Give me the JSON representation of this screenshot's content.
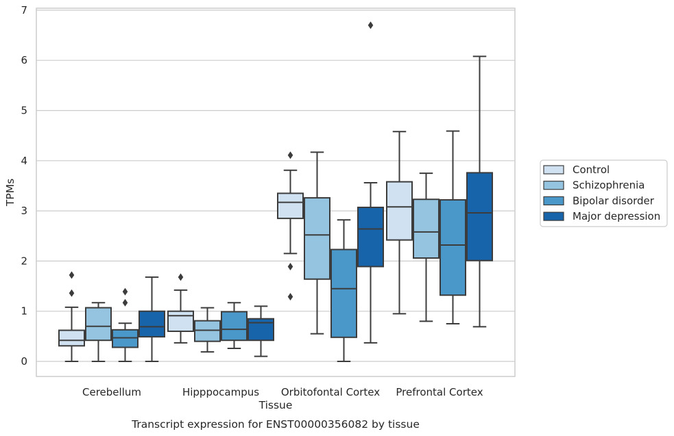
{
  "chart_data": {
    "type": "box",
    "xlabel": "Tissue",
    "ylabel": "TPMs",
    "caption": "Transcript expression for ENST00000356082 by tissue",
    "ylim": [
      -0.3,
      7.05
    ],
    "yticks": [
      0,
      1,
      2,
      3,
      4,
      5,
      6,
      7
    ],
    "grid": "horizontal",
    "legend_position": "right",
    "categories": [
      "Cerebellum",
      "Hipppocampus",
      "Orbitofontal Cortex",
      "Prefrontal Cortex"
    ],
    "series": [
      {
        "name": "Control",
        "color": "#d0e1f2",
        "boxes": [
          {
            "whislo": 0.0,
            "q1": 0.31,
            "med": 0.42,
            "q3": 0.62,
            "whishi": 1.08,
            "fliers": [
              1.72,
              1.36
            ]
          },
          {
            "whislo": 0.37,
            "q1": 0.6,
            "med": 0.91,
            "q3": 1.0,
            "whishi": 1.42,
            "fliers": [
              1.68
            ]
          },
          {
            "whislo": 2.15,
            "q1": 2.85,
            "med": 3.17,
            "q3": 3.35,
            "whishi": 3.81,
            "fliers": [
              4.11,
              1.89,
              1.29
            ]
          },
          {
            "whislo": 0.95,
            "q1": 2.42,
            "med": 3.08,
            "q3": 3.58,
            "whishi": 4.58,
            "fliers": []
          }
        ]
      },
      {
        "name": "Schizophrenia",
        "color": "#94c4df",
        "boxes": [
          {
            "whislo": 0.0,
            "q1": 0.42,
            "med": 0.7,
            "q3": 1.07,
            "whishi": 1.17,
            "fliers": []
          },
          {
            "whislo": 0.19,
            "q1": 0.4,
            "med": 0.62,
            "q3": 0.81,
            "whishi": 1.07,
            "fliers": []
          },
          {
            "whislo": 0.55,
            "q1": 1.64,
            "med": 2.52,
            "q3": 3.26,
            "whishi": 4.17,
            "fliers": []
          },
          {
            "whislo": 0.8,
            "q1": 2.06,
            "med": 2.58,
            "q3": 3.23,
            "whishi": 3.75,
            "fliers": []
          }
        ]
      },
      {
        "name": "Bipolar disorder",
        "color": "#4a98c9",
        "boxes": [
          {
            "whislo": 0.0,
            "q1": 0.28,
            "med": 0.47,
            "q3": 0.63,
            "whishi": 0.76,
            "fliers": [
              1.39,
              1.17
            ]
          },
          {
            "whislo": 0.26,
            "q1": 0.42,
            "med": 0.64,
            "q3": 0.99,
            "whishi": 1.17,
            "fliers": []
          },
          {
            "whislo": 0.0,
            "q1": 0.48,
            "med": 1.45,
            "q3": 2.23,
            "whishi": 2.82,
            "fliers": []
          },
          {
            "whislo": 0.75,
            "q1": 1.32,
            "med": 2.32,
            "q3": 3.22,
            "whishi": 4.59,
            "fliers": []
          }
        ]
      },
      {
        "name": "Major depression",
        "color": "#1764ab",
        "boxes": [
          {
            "whislo": 0.0,
            "q1": 0.49,
            "med": 0.69,
            "q3": 1.0,
            "whishi": 1.68,
            "fliers": []
          },
          {
            "whislo": 0.1,
            "q1": 0.42,
            "med": 0.77,
            "q3": 0.85,
            "whishi": 1.1,
            "fliers": []
          },
          {
            "whislo": 0.37,
            "q1": 1.89,
            "med": 2.64,
            "q3": 3.07,
            "whishi": 3.56,
            "fliers": [
              6.7
            ]
          },
          {
            "whislo": 0.69,
            "q1": 2.01,
            "med": 2.96,
            "q3": 3.76,
            "whishi": 6.08,
            "fliers": []
          }
        ]
      }
    ]
  }
}
